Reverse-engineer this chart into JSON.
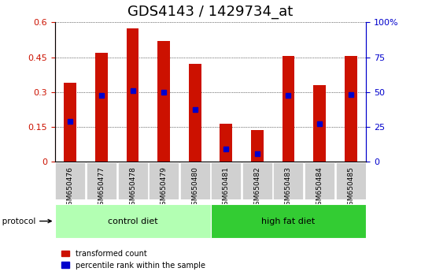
{
  "title": "GDS4143 / 1429734_at",
  "samples": [
    "GSM650476",
    "GSM650477",
    "GSM650478",
    "GSM650479",
    "GSM650480",
    "GSM650481",
    "GSM650482",
    "GSM650483",
    "GSM650484",
    "GSM650485"
  ],
  "transformed_count": [
    0.34,
    0.47,
    0.575,
    0.52,
    0.42,
    0.163,
    0.138,
    0.455,
    0.33,
    0.455
  ],
  "percentile_rank": [
    0.175,
    0.285,
    0.305,
    0.3,
    0.225,
    0.055,
    0.035,
    0.285,
    0.165,
    0.29
  ],
  "groups": [
    {
      "label": "control diet",
      "start": 0,
      "end": 5,
      "color": "#b3ffb3"
    },
    {
      "label": "high fat diet",
      "start": 5,
      "end": 10,
      "color": "#33cc33"
    }
  ],
  "group_label": "growth protocol",
  "ylim_left": [
    0,
    0.6
  ],
  "ylim_right": [
    0,
    100
  ],
  "yticks_left": [
    0,
    0.15,
    0.3,
    0.45,
    0.6
  ],
  "yticks_right": [
    0,
    25,
    50,
    75,
    100
  ],
  "bar_color": "#cc1100",
  "marker_color": "#0000cc",
  "bg_color": "#f0f0f0",
  "title_fontsize": 13,
  "tick_fontsize": 8,
  "legend_label_red": "transformed count",
  "legend_label_blue": "percentile rank within the sample"
}
